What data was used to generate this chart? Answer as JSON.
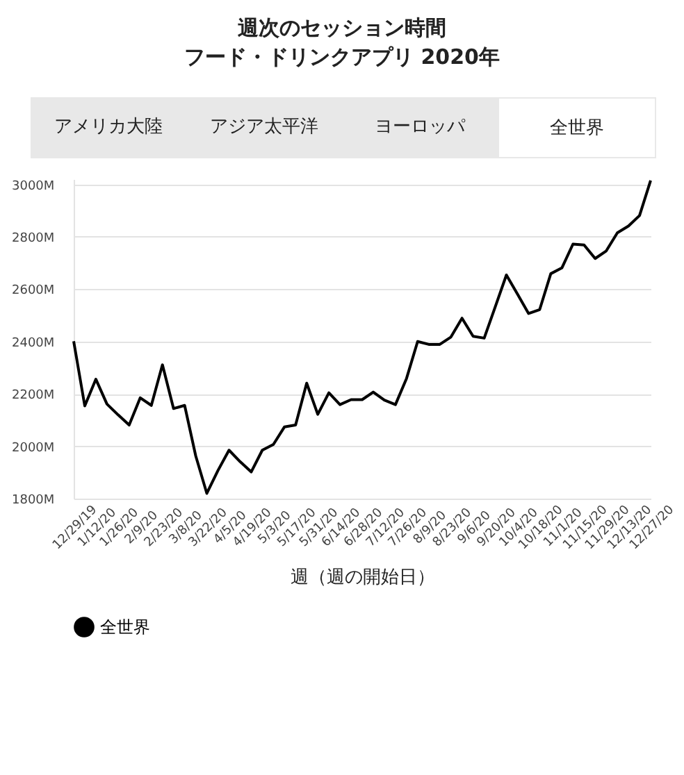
{
  "chart_data": {
    "type": "line",
    "title": "週次のセッション時間",
    "subtitle": "フード・ドリンクアプリ 2020年",
    "xlabel": "週（週の開始日）",
    "annotations": [
      "アメリカ大陸",
      "アジア太平洋",
      "ヨーロッパ",
      "全世界"
    ],
    "categories": [
      "12/29/19",
      null,
      "1/12/20",
      null,
      "1/26/20",
      null,
      "2/9/20",
      null,
      "2/23/20",
      null,
      "3/8/20",
      null,
      "3/22/20",
      null,
      "4/5/20",
      null,
      "4/19/20",
      null,
      "5/3/20",
      null,
      "5/17/20",
      null,
      "5/31/20",
      null,
      "6/14/20",
      null,
      "6/28/20",
      null,
      "7/12/20",
      null,
      "7/26/20",
      null,
      "8/9/20",
      null,
      "8/23/20",
      null,
      "9/6/20",
      null,
      "9/20/20",
      null,
      "10/4/20",
      null,
      "10/18/20",
      null,
      "11/1/20",
      null,
      "11/15/20",
      null,
      "11/29/20",
      null,
      "12/13/20",
      null,
      "12/27/20"
    ],
    "series": [
      {
        "name": "全世界",
        "color": "#000000",
        "values": [
          2401,
          2154,
          2256,
          2161,
          2120,
          2081,
          2185,
          2156,
          2311,
          2144,
          2156,
          1963,
          1820,
          1907,
          1985,
          1941,
          1902,
          1985,
          2007,
          2074,
          2081,
          2241,
          2122,
          2204,
          2159,
          2178,
          2178,
          2207,
          2176,
          2159,
          2259,
          2400,
          2389,
          2389,
          2417,
          2489,
          2420,
          2413,
          2533,
          2654,
          2581,
          2507,
          2522,
          2659,
          2681,
          2772,
          2769,
          2717,
          2746,
          2815,
          2841,
          2881,
          3015
        ]
      }
    ],
    "ylim": [
      1800,
      3020
    ],
    "yticks": [
      {
        "value": 1800,
        "label": "1800M"
      },
      {
        "value": 2000,
        "label": "2000M"
      },
      {
        "value": 2200,
        "label": "2200M"
      },
      {
        "value": 2400,
        "label": "2400M"
      },
      {
        "value": 2600,
        "label": "2600M"
      },
      {
        "value": 2800,
        "label": "2800M"
      },
      {
        "value": 3000,
        "label": "3000M"
      }
    ],
    "grid": "y",
    "legend": "bottom"
  }
}
